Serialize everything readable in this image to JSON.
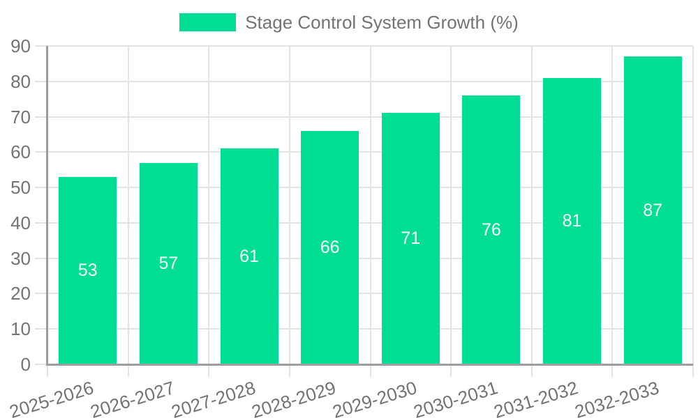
{
  "chart_data": {
    "type": "bar",
    "title": "Stage Control System Growth (%)",
    "series": [
      {
        "name": "Stage Control System Growth (%)",
        "values": [
          53,
          57,
          61,
          66,
          71,
          76,
          81,
          87
        ]
      }
    ],
    "categories": [
      "2025-2026",
      "2026-2027",
      "2027-2028",
      "2028-2029",
      "2029-2030",
      "2030-2031",
      "2031-2032",
      "2032-2033"
    ],
    "values": [
      53,
      57,
      61,
      66,
      71,
      76,
      81,
      87
    ],
    "bar_value_labels": [
      "53",
      "57",
      "61",
      "66",
      "71",
      "76",
      "81",
      "87"
    ],
    "xlabel": "",
    "ylabel": "",
    "ylim": [
      0,
      90
    ],
    "y_ticks": [
      0,
      10,
      20,
      30,
      40,
      50,
      60,
      70,
      80,
      90
    ],
    "grid": true,
    "legend_position": "top",
    "x_tick_rotation_deg": -17,
    "colors": {
      "bar": "#00DE94",
      "bar_label": "#FFFFFF",
      "axis_text": "#737373",
      "gridline": "#E3E3E3",
      "axis_line": "#9E9E9E",
      "background": "#FFFFFF"
    }
  }
}
